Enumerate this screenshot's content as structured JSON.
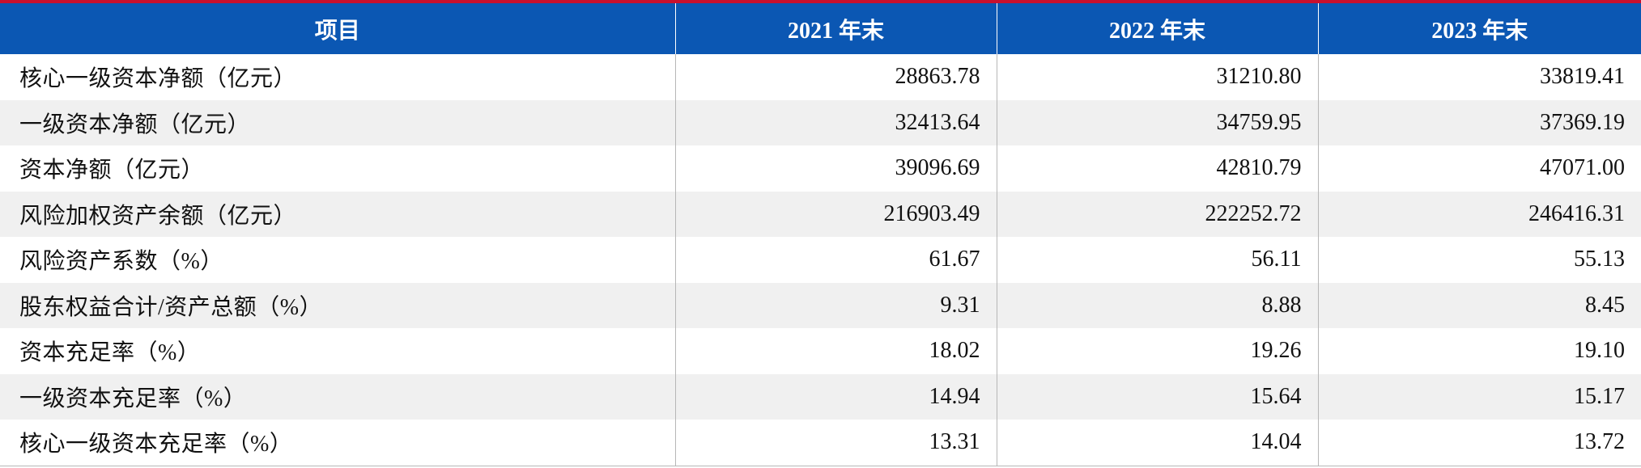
{
  "table": {
    "headers": [
      "项目",
      "2021 年末",
      "2022 年末",
      "2023 年末"
    ],
    "rows": [
      {
        "label": "核心一级资本净额（亿元）",
        "v2021": "28863.78",
        "v2022": "31210.80",
        "v2023": "33819.41"
      },
      {
        "label": "一级资本净额（亿元）",
        "v2021": "32413.64",
        "v2022": "34759.95",
        "v2023": "37369.19"
      },
      {
        "label": "资本净额（亿元）",
        "v2021": "39096.69",
        "v2022": "42810.79",
        "v2023": "47071.00"
      },
      {
        "label": "风险加权资产余额（亿元）",
        "v2021": "216903.49",
        "v2022": "222252.72",
        "v2023": "246416.31"
      },
      {
        "label": "风险资产系数（%）",
        "v2021": "61.67",
        "v2022": "56.11",
        "v2023": "55.13"
      },
      {
        "label": "股东权益合计/资产总额（%）",
        "v2021": "9.31",
        "v2022": "8.88",
        "v2023": "8.45"
      },
      {
        "label": "资本充足率（%）",
        "v2021": "18.02",
        "v2022": "19.26",
        "v2023": "19.10"
      },
      {
        "label": "一级资本充足率（%）",
        "v2021": "14.94",
        "v2022": "15.64",
        "v2023": "15.17"
      },
      {
        "label": "核心一级资本充足率（%）",
        "v2021": "13.31",
        "v2022": "14.04",
        "v2023": "13.72"
      }
    ]
  },
  "colors": {
    "header_bg": "#0b57b3",
    "top_rule": "#c8102e",
    "stripe": "#f0f0f0"
  }
}
